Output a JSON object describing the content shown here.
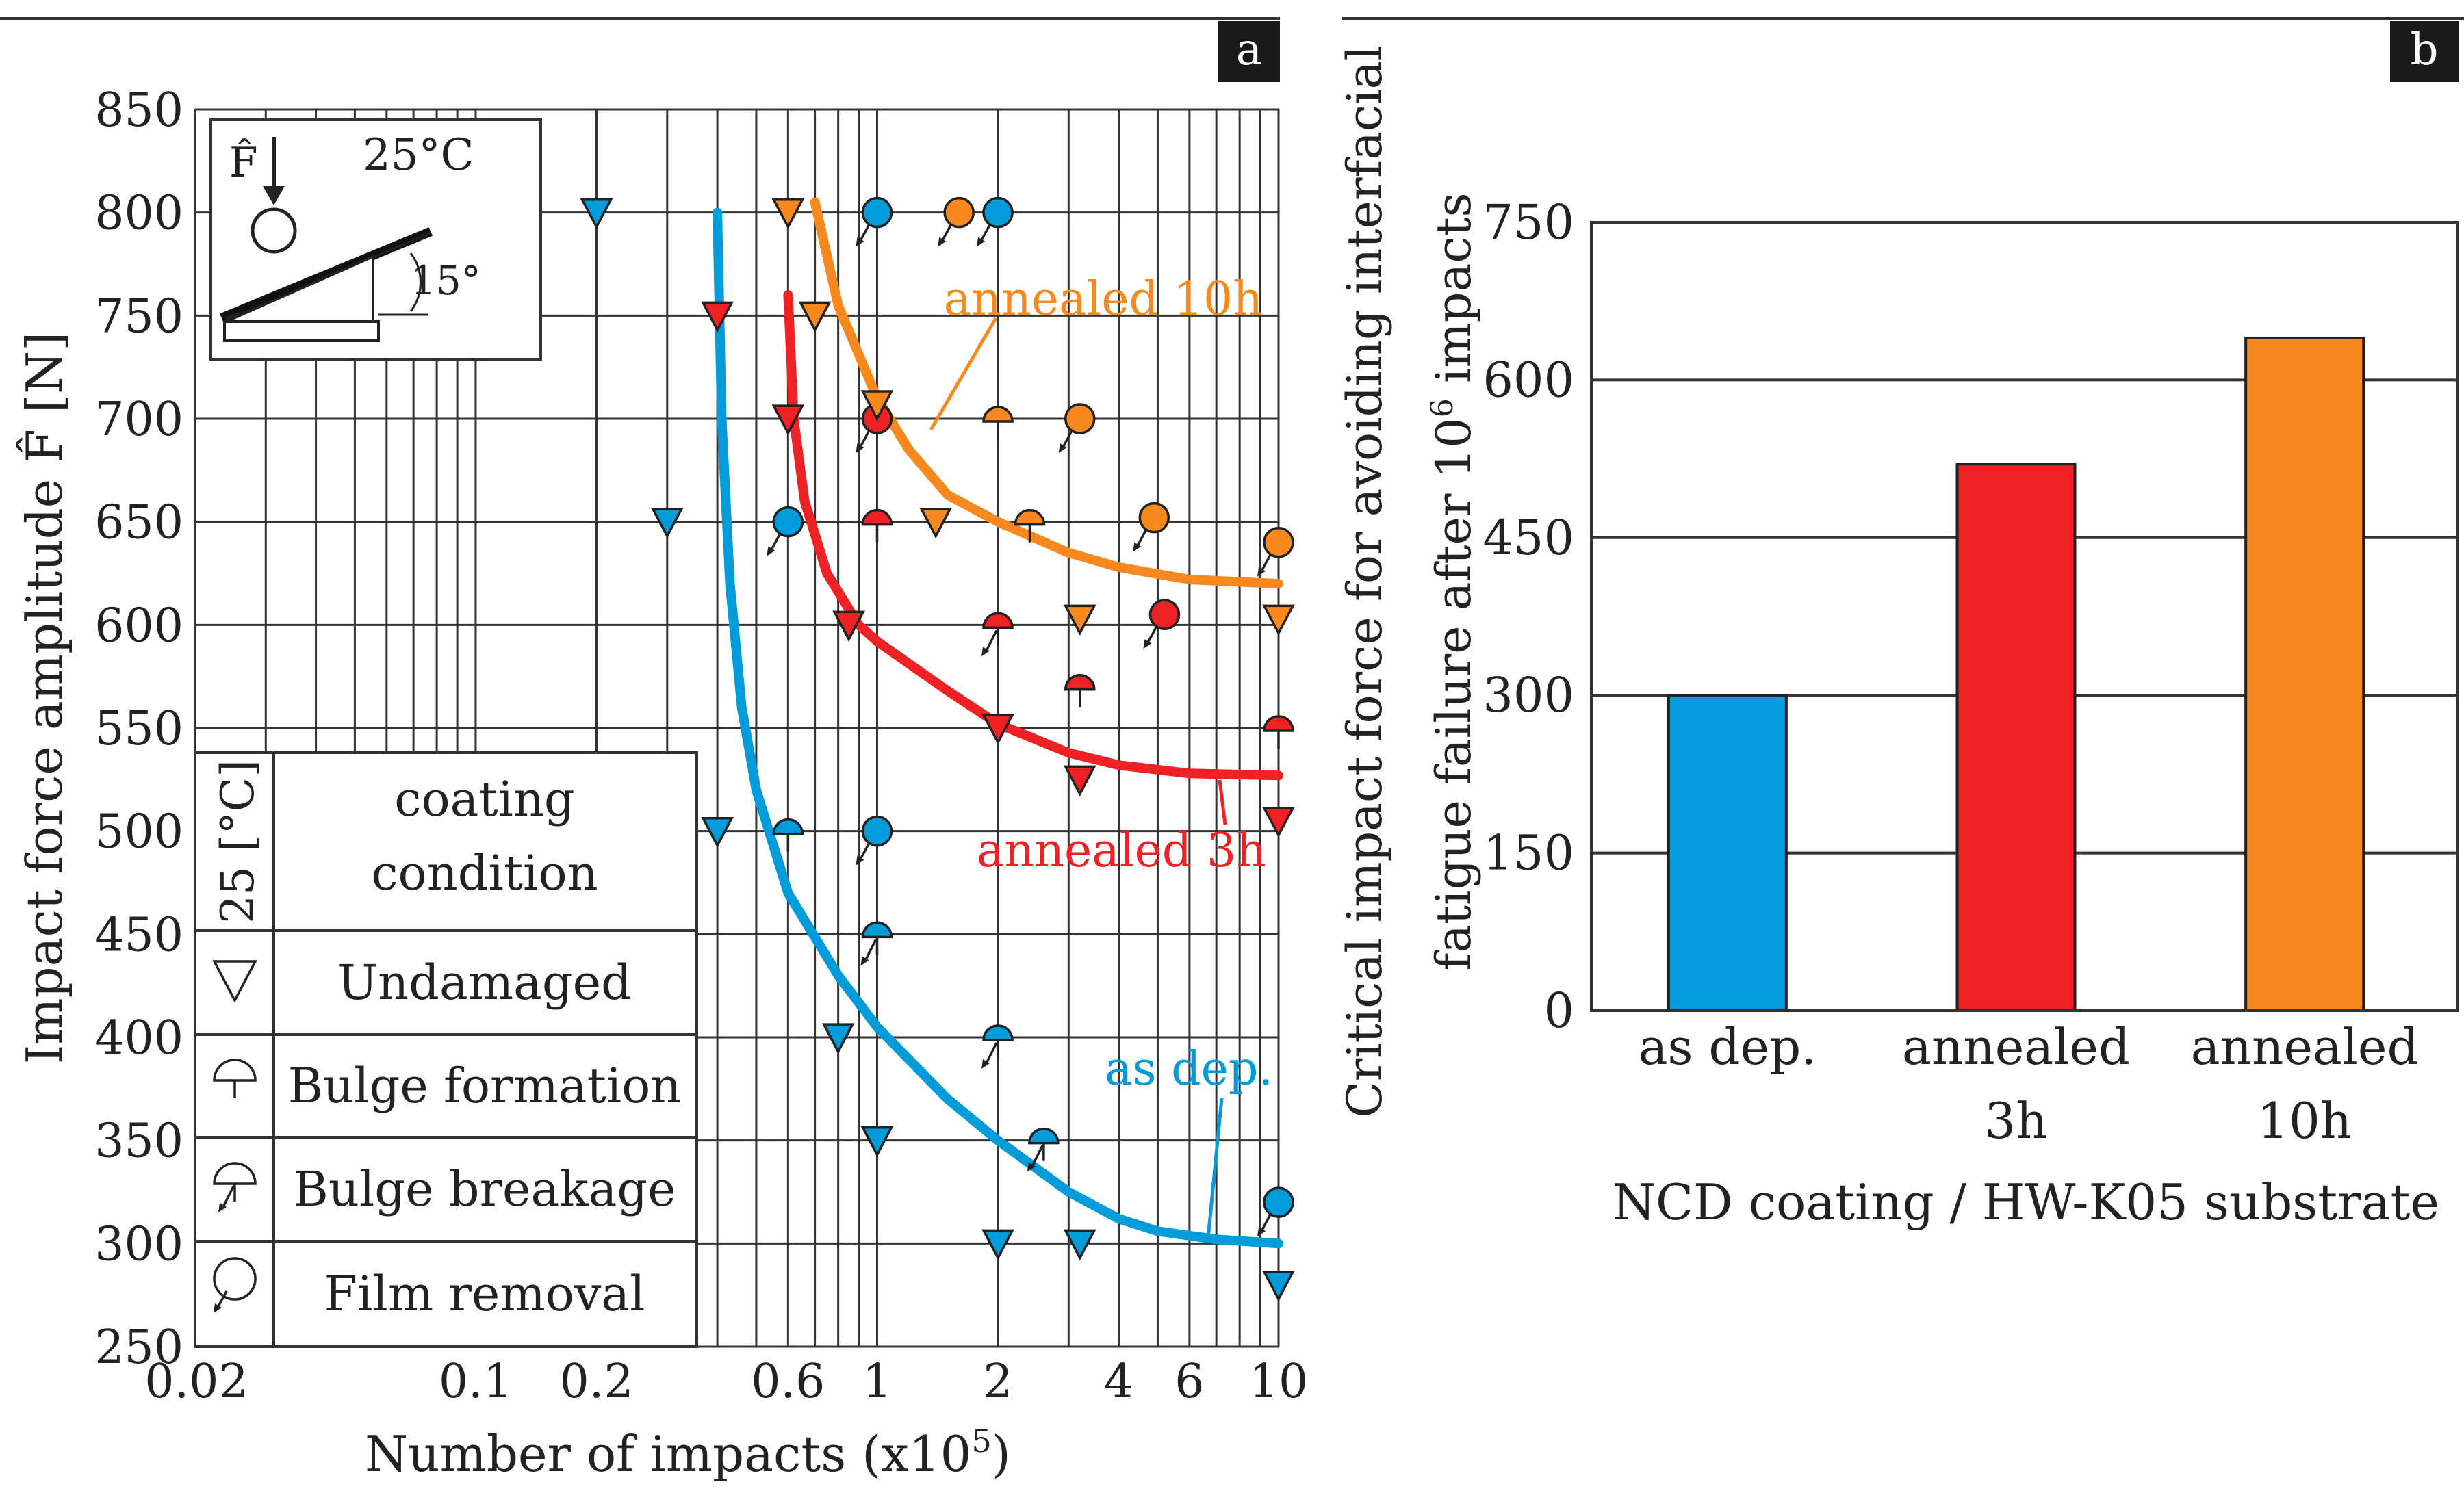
{
  "chart_data": [
    {
      "type": "scatter",
      "panel_label": "a",
      "xscale": "log",
      "xlabel_main": "Number of impacts (x10",
      "xlabel_exp": "5",
      "xlabel_tail": ")",
      "ylabel": "Impact force amplitude F̂ [N]",
      "xlim": [
        0.02,
        10
      ],
      "ylim": [
        250,
        850
      ],
      "xticks": [
        {
          "v": 0.02,
          "label": "0.02"
        },
        {
          "v": 0.1,
          "label": "0.1"
        },
        {
          "v": 0.2,
          "label": "0.2"
        },
        {
          "v": 0.6,
          "label": "0.6"
        },
        {
          "v": 1,
          "label": "1"
        },
        {
          "v": 2,
          "label": "2"
        },
        {
          "v": 4,
          "label": "4"
        },
        {
          "v": 6,
          "label": "6"
        },
        {
          "v": 10,
          "label": "10"
        }
      ],
      "yticks": [
        250,
        300,
        350,
        400,
        450,
        500,
        550,
        600,
        650,
        700,
        750,
        800,
        850
      ],
      "inset": {
        "force_label": "F̂",
        "temperature": "25°C",
        "angle": "15°"
      },
      "legend": {
        "header_temp": "25 [°C]",
        "header_line1": "coating",
        "header_line2": "condition",
        "items": [
          {
            "symbol": "undamaged",
            "label": "Undamaged"
          },
          {
            "symbol": "bulge",
            "label": "Bulge formation"
          },
          {
            "symbol": "bulge_break",
            "label": "Bulge breakage"
          },
          {
            "symbol": "film",
            "label": "Film removal"
          }
        ]
      },
      "series": [
        {
          "name": "as dep.",
          "label": "as dep.",
          "color": "#009bd9",
          "curve": [
            [
              0.4,
              800
            ],
            [
              0.41,
              700
            ],
            [
              0.43,
              620
            ],
            [
              0.46,
              560
            ],
            [
              0.5,
              520
            ],
            [
              0.6,
              470
            ],
            [
              0.8,
              430
            ],
            [
              1,
              405
            ],
            [
              1.5,
              370
            ],
            [
              2,
              350
            ],
            [
              3,
              325
            ],
            [
              4,
              312
            ],
            [
              5,
              306
            ],
            [
              7,
              302
            ],
            [
              10,
              300
            ]
          ],
          "points": [
            {
              "x": 0.2,
              "y": 800,
              "s": "undamaged"
            },
            {
              "x": 0.3,
              "y": 650,
              "s": "undamaged"
            },
            {
              "x": 1,
              "y": 800,
              "s": "film"
            },
            {
              "x": 2,
              "y": 800,
              "s": "film"
            },
            {
              "x": 0.6,
              "y": 650,
              "s": "film"
            },
            {
              "x": 0.4,
              "y": 500,
              "s": "undamaged"
            },
            {
              "x": 0.6,
              "y": 500,
              "s": "bulge"
            },
            {
              "x": 1,
              "y": 500,
              "s": "film"
            },
            {
              "x": 1,
              "y": 450,
              "s": "bulge_break"
            },
            {
              "x": 0.8,
              "y": 400,
              "s": "undamaged"
            },
            {
              "x": 2,
              "y": 400,
              "s": "bulge_break"
            },
            {
              "x": 1,
              "y": 350,
              "s": "undamaged"
            },
            {
              "x": 2.6,
              "y": 350,
              "s": "bulge_break"
            },
            {
              "x": 2,
              "y": 300,
              "s": "undamaged"
            },
            {
              "x": 3.2,
              "y": 300,
              "s": "undamaged"
            },
            {
              "x": 10,
              "y": 320,
              "s": "film"
            },
            {
              "x": 10,
              "y": 280,
              "s": "undamaged"
            }
          ]
        },
        {
          "name": "annealed 3h",
          "label": "annealed 3h",
          "color": "#ee2125",
          "curve": [
            [
              0.6,
              760
            ],
            [
              0.62,
              700
            ],
            [
              0.66,
              660
            ],
            [
              0.75,
              625
            ],
            [
              0.9,
              600
            ],
            [
              1,
              592
            ],
            [
              1.5,
              568
            ],
            [
              2,
              552
            ],
            [
              3,
              538
            ],
            [
              4,
              532
            ],
            [
              6,
              528
            ],
            [
              10,
              527
            ]
          ],
          "points": [
            {
              "x": 0.4,
              "y": 750,
              "s": "undamaged"
            },
            {
              "x": 0.6,
              "y": 700,
              "s": "undamaged"
            },
            {
              "x": 1,
              "y": 700,
              "s": "film"
            },
            {
              "x": 1,
              "y": 650,
              "s": "bulge"
            },
            {
              "x": 0.85,
              "y": 600,
              "s": "undamaged"
            },
            {
              "x": 2,
              "y": 600,
              "s": "bulge_break"
            },
            {
              "x": 3.2,
              "y": 570,
              "s": "bulge"
            },
            {
              "x": 5.2,
              "y": 605,
              "s": "film"
            },
            {
              "x": 2,
              "y": 550,
              "s": "undamaged"
            },
            {
              "x": 3.2,
              "y": 525,
              "s": "undamaged"
            },
            {
              "x": 10,
              "y": 550,
              "s": "bulge"
            },
            {
              "x": 10,
              "y": 505,
              "s": "undamaged"
            }
          ]
        },
        {
          "name": "annealed 10h",
          "label": "annealed 10h",
          "color": "#f7891f",
          "curve": [
            [
              0.7,
              805
            ],
            [
              0.8,
              755
            ],
            [
              1,
              710
            ],
            [
              1.2,
              685
            ],
            [
              1.5,
              663
            ],
            [
              2,
              650
            ],
            [
              3,
              635
            ],
            [
              4,
              628
            ],
            [
              6,
              622
            ],
            [
              10,
              620
            ]
          ],
          "points": [
            {
              "x": 0.6,
              "y": 800,
              "s": "undamaged"
            },
            {
              "x": 1.6,
              "y": 800,
              "s": "film"
            },
            {
              "x": 0.7,
              "y": 750,
              "s": "undamaged"
            },
            {
              "x": 1,
              "y": 707,
              "s": "undamaged"
            },
            {
              "x": 2,
              "y": 700,
              "s": "bulge"
            },
            {
              "x": 3.2,
              "y": 700,
              "s": "film"
            },
            {
              "x": 1.4,
              "y": 650,
              "s": "undamaged"
            },
            {
              "x": 2.4,
              "y": 650,
              "s": "bulge"
            },
            {
              "x": 4.9,
              "y": 652,
              "s": "film"
            },
            {
              "x": 10,
              "y": 640,
              "s": "film"
            },
            {
              "x": 3.2,
              "y": 603,
              "s": "undamaged"
            },
            {
              "x": 10,
              "y": 603,
              "s": "undamaged"
            }
          ]
        }
      ]
    },
    {
      "type": "bar",
      "panel_label": "b",
      "categories": [
        {
          "line1": "as dep.",
          "line2": ""
        },
        {
          "line1": "annealed",
          "line2": "3h"
        },
        {
          "line1": "annealed",
          "line2": "10h"
        }
      ],
      "values": [
        300,
        520,
        640
      ],
      "colors": [
        "#009bd9",
        "#ee2125",
        "#f7891f"
      ],
      "ylabel_line1": "Critical impact force for avoiding interfacial",
      "ylabel_line2_pre": "fatigue failure after 10",
      "ylabel_line2_exp": "6",
      "ylabel_line2_post": " impacts",
      "xlabel": "NCD coating / HW-K05 substrate",
      "ylim": [
        0,
        750
      ],
      "yticks": [
        0,
        150,
        300,
        450,
        600,
        750
      ]
    }
  ]
}
